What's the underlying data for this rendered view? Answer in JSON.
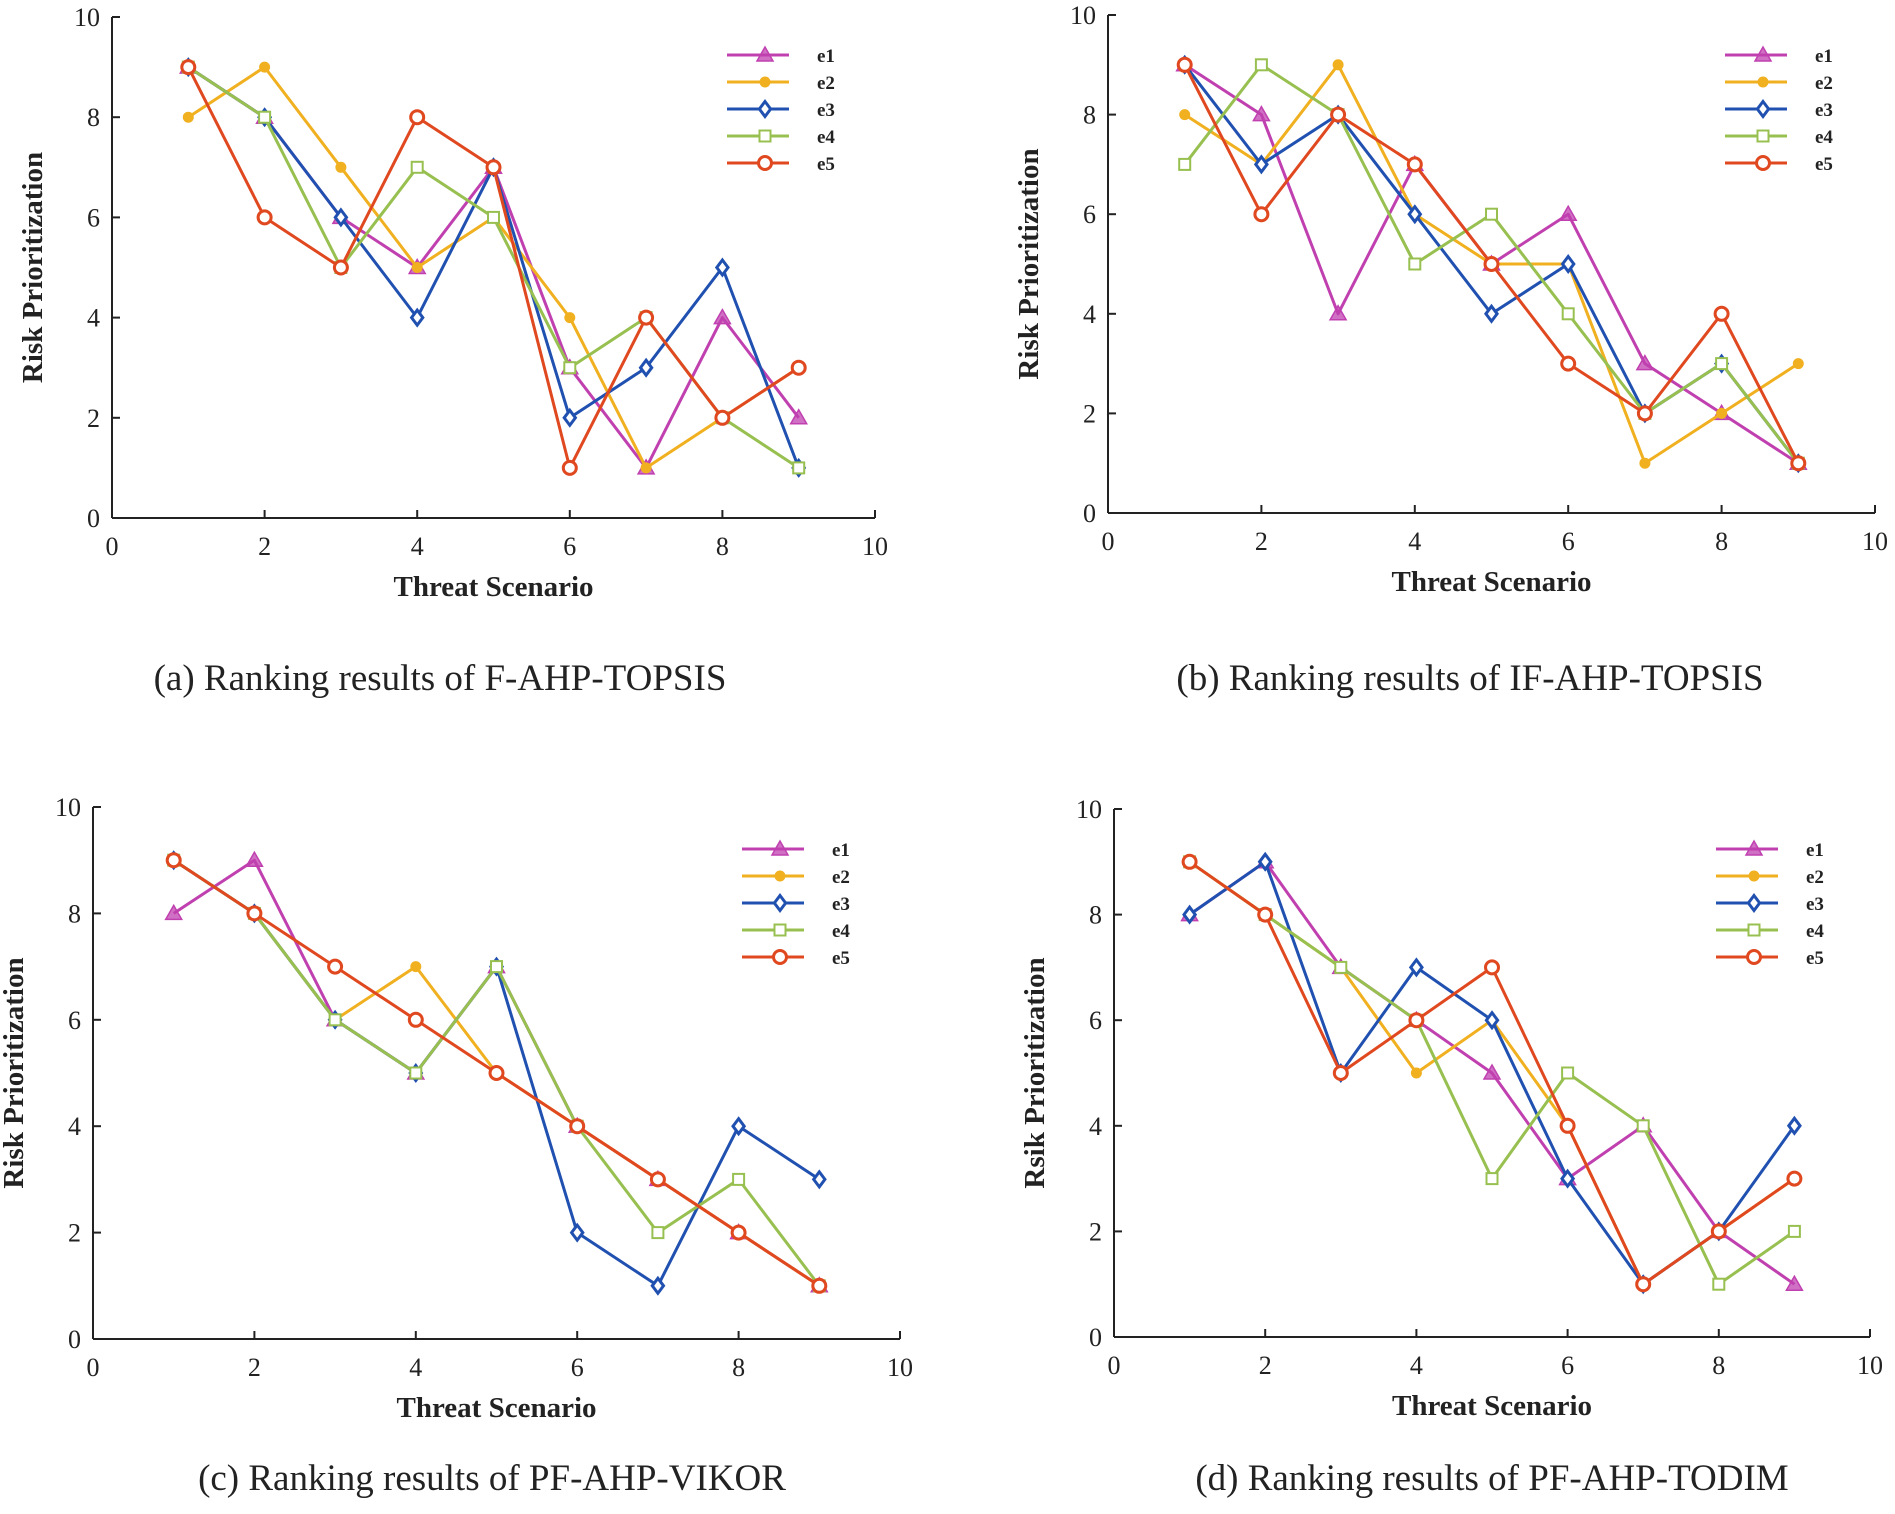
{
  "colors": {
    "e1": "#c040b0",
    "e2": "#f0b020",
    "e3": "#2050b0",
    "e4": "#98c050",
    "e5": "#e04820"
  },
  "chart_data": [
    {
      "id": "a",
      "type": "line",
      "caption": "(a) Ranking results of F-AHP-TOPSIS",
      "xlabel": "Threat Scenario",
      "ylabel": "Risk Prioritization",
      "xlim": [
        0,
        10
      ],
      "ylim": [
        0,
        10
      ],
      "xticks": [
        "0",
        "2",
        "4",
        "6",
        "8",
        "10"
      ],
      "yticks": [
        "0",
        "2",
        "4",
        "6",
        "8",
        "10"
      ],
      "legend": "top-right",
      "x": [
        1,
        2,
        3,
        4,
        5,
        6,
        7,
        8,
        9
      ],
      "series": [
        {
          "name": "e1",
          "marker": "triangle",
          "values": [
            9,
            8,
            6,
            5,
            7,
            3,
            1,
            4,
            2
          ]
        },
        {
          "name": "e2",
          "marker": "dot",
          "values": [
            8,
            9,
            7,
            5,
            6,
            4,
            1,
            2,
            3
          ]
        },
        {
          "name": "e3",
          "marker": "diamond",
          "values": [
            9,
            8,
            6,
            4,
            7,
            2,
            3,
            5,
            1
          ]
        },
        {
          "name": "e4",
          "marker": "square",
          "values": [
            9,
            8,
            5,
            7,
            6,
            3,
            4,
            2,
            1
          ]
        },
        {
          "name": "e5",
          "marker": "circle",
          "values": [
            9,
            6,
            5,
            8,
            7,
            1,
            4,
            2,
            3
          ]
        }
      ]
    },
    {
      "id": "b",
      "type": "line",
      "caption": "(b) Ranking results of IF-AHP-TOPSIS",
      "xlabel": "Threat Scenario",
      "ylabel": "Risk Prioritization",
      "xlim": [
        0,
        10
      ],
      "ylim": [
        0,
        10
      ],
      "xticks": [
        "0",
        "2",
        "4",
        "6",
        "8",
        "10"
      ],
      "yticks": [
        "0",
        "2",
        "4",
        "6",
        "8",
        "10"
      ],
      "legend": "top-right",
      "x": [
        1,
        2,
        3,
        4,
        5,
        6,
        7,
        8,
        9
      ],
      "series": [
        {
          "name": "e1",
          "marker": "triangle",
          "values": [
            9,
            8,
            4,
            7,
            5,
            6,
            3,
            2,
            1
          ]
        },
        {
          "name": "e2",
          "marker": "dot",
          "values": [
            8,
            7,
            9,
            6,
            5,
            5,
            1,
            2,
            3
          ]
        },
        {
          "name": "e3",
          "marker": "diamond",
          "values": [
            9,
            7,
            8,
            6,
            4,
            5,
            2,
            3,
            1
          ]
        },
        {
          "name": "e4",
          "marker": "square",
          "values": [
            7,
            9,
            8,
            5,
            6,
            4,
            2,
            3,
            1
          ]
        },
        {
          "name": "e5",
          "marker": "circle",
          "values": [
            9,
            6,
            8,
            7,
            5,
            3,
            2,
            4,
            1
          ]
        }
      ]
    },
    {
      "id": "c",
      "type": "line",
      "caption": "(c) Ranking results of PF-AHP-VIKOR",
      "xlabel": "Threat Scenario",
      "ylabel": "Risk Prioritization",
      "xlim": [
        0,
        10
      ],
      "ylim": [
        0,
        10
      ],
      "xticks": [
        "0",
        "2",
        "4",
        "6",
        "8",
        "10"
      ],
      "yticks": [
        "0",
        "2",
        "4",
        "6",
        "8",
        "10"
      ],
      "legend": "top-right",
      "x": [
        1,
        2,
        3,
        4,
        5,
        6,
        7,
        8,
        9
      ],
      "series": [
        {
          "name": "e1",
          "marker": "triangle",
          "values": [
            8,
            9,
            6,
            5,
            7,
            4,
            3,
            2,
            1
          ]
        },
        {
          "name": "e2",
          "marker": "dot",
          "values": [
            9,
            8,
            6,
            7,
            5,
            4,
            3,
            2,
            1
          ]
        },
        {
          "name": "e3",
          "marker": "diamond",
          "values": [
            9,
            8,
            6,
            5,
            7,
            2,
            1,
            4,
            3
          ]
        },
        {
          "name": "e4",
          "marker": "square",
          "values": [
            9,
            8,
            6,
            5,
            7,
            4,
            2,
            3,
            1
          ]
        },
        {
          "name": "e5",
          "marker": "circle",
          "values": [
            9,
            8,
            7,
            6,
            5,
            4,
            3,
            2,
            1
          ]
        }
      ]
    },
    {
      "id": "d",
      "type": "line",
      "caption": "(d) Ranking results of PF-AHP-TODIM",
      "xlabel": "Threat Scenario",
      "ylabel": "Rsik Prioritization",
      "xlim": [
        0,
        10
      ],
      "ylim": [
        0,
        10
      ],
      "xticks": [
        "0",
        "2",
        "4",
        "6",
        "8",
        "10"
      ],
      "yticks": [
        "0",
        "2",
        "4",
        "6",
        "8",
        "10"
      ],
      "legend": "top-right",
      "x": [
        1,
        2,
        3,
        4,
        5,
        6,
        7,
        8,
        9
      ],
      "series": [
        {
          "name": "e1",
          "marker": "triangle",
          "values": [
            8,
            9,
            7,
            6,
            5,
            3,
            4,
            2,
            1
          ]
        },
        {
          "name": "e2",
          "marker": "dot",
          "values": [
            9,
            8,
            7,
            5,
            6,
            4,
            1,
            2,
            3
          ]
        },
        {
          "name": "e3",
          "marker": "diamond",
          "values": [
            8,
            9,
            5,
            7,
            6,
            3,
            1,
            2,
            4
          ]
        },
        {
          "name": "e4",
          "marker": "square",
          "values": [
            9,
            8,
            7,
            6,
            3,
            5,
            4,
            1,
            2
          ]
        },
        {
          "name": "e5",
          "marker": "circle",
          "values": [
            9,
            8,
            5,
            6,
            7,
            4,
            1,
            2,
            3
          ]
        }
      ]
    }
  ]
}
